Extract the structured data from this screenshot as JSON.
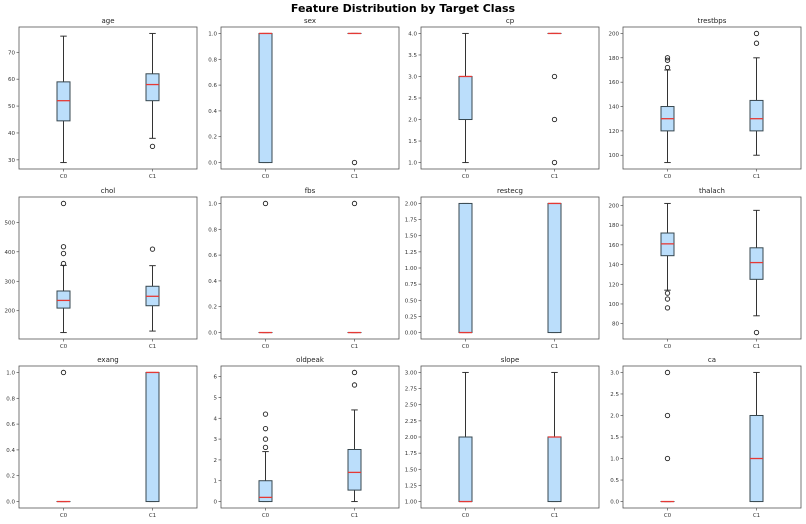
{
  "chart_data": {
    "title": "Feature Distribution by Target Class",
    "type": "boxplot",
    "categories": [
      "C0",
      "C1"
    ],
    "colors": {
      "box_fill": "#bbdefb",
      "box_edge": "#37474f",
      "median": "#e53935",
      "whisker": "#333333"
    },
    "grid": false,
    "panels": [
      {
        "title": "age",
        "ylim": [
          26.6,
          79.4
        ],
        "yticks": [
          "30",
          "40",
          "50",
          "60",
          "70"
        ],
        "boxes": [
          {
            "whislo": 29,
            "q1": 44.5,
            "med": 52,
            "q3": 59,
            "whishi": 76,
            "fliers": []
          },
          {
            "whislo": 38,
            "q1": 52,
            "med": 58,
            "q3": 62,
            "whishi": 77,
            "fliers": [
              35
            ]
          }
        ]
      },
      {
        "title": "sex",
        "ylim": [
          -0.05,
          1.05
        ],
        "yticks": [
          "0.0",
          "0.2",
          "0.4",
          "0.6",
          "0.8",
          "1.0"
        ],
        "boxes": [
          {
            "whislo": 0,
            "q1": 0,
            "med": 1,
            "q3": 1,
            "whishi": 1,
            "fliers": []
          },
          {
            "whislo": 1,
            "q1": 1,
            "med": 1,
            "q3": 1,
            "whishi": 1,
            "fliers": [
              0
            ]
          }
        ]
      },
      {
        "title": "cp",
        "ylim": [
          0.85,
          4.15
        ],
        "yticks": [
          "1.0",
          "1.5",
          "2.0",
          "2.5",
          "3.0",
          "3.5",
          "4.0"
        ],
        "boxes": [
          {
            "whislo": 1,
            "q1": 2,
            "med": 3,
            "q3": 3,
            "whishi": 4,
            "fliers": []
          },
          {
            "whislo": 4,
            "q1": 4,
            "med": 4,
            "q3": 4,
            "whishi": 4,
            "fliers": [
              1,
              2,
              3
            ]
          }
        ]
      },
      {
        "title": "trestbps",
        "ylim": [
          88.7,
          205.3
        ],
        "yticks": [
          "100",
          "120",
          "140",
          "160",
          "180",
          "200"
        ],
        "boxes": [
          {
            "whislo": 94,
            "q1": 120,
            "med": 130,
            "q3": 140,
            "whishi": 170,
            "fliers": [
              172,
              178,
              180
            ]
          },
          {
            "whislo": 100,
            "q1": 120,
            "med": 130,
            "q3": 145,
            "whishi": 180,
            "fliers": [
              192,
              200
            ]
          }
        ]
      },
      {
        "title": "chol",
        "ylim": [
          104.1,
          585.9
        ],
        "yticks": [
          "200",
          "300",
          "400",
          "500"
        ],
        "boxes": [
          {
            "whislo": 126,
            "q1": 209,
            "med": 235,
            "q3": 267,
            "whishi": 354,
            "fliers": [
              360,
              394,
              417,
              564
            ]
          },
          {
            "whislo": 131,
            "q1": 217,
            "med": 249,
            "q3": 283,
            "whishi": 353,
            "fliers": [
              409
            ]
          }
        ]
      },
      {
        "title": "fbs",
        "ylim": [
          -0.05,
          1.05
        ],
        "yticks": [
          "0.0",
          "0.2",
          "0.4",
          "0.6",
          "0.8",
          "1.0"
        ],
        "boxes": [
          {
            "whislo": 0,
            "q1": 0,
            "med": 0,
            "q3": 0,
            "whishi": 0,
            "fliers": [
              1
            ]
          },
          {
            "whislo": 0,
            "q1": 0,
            "med": 0,
            "q3": 0,
            "whishi": 0,
            "fliers": [
              1
            ]
          }
        ]
      },
      {
        "title": "restecg",
        "ylim": [
          -0.1,
          2.1
        ],
        "yticks": [
          "0.00",
          "0.25",
          "0.50",
          "0.75",
          "1.00",
          "1.25",
          "1.50",
          "1.75",
          "2.00"
        ],
        "boxes": [
          {
            "whislo": 0,
            "q1": 0,
            "med": 0,
            "q3": 2,
            "whishi": 2,
            "fliers": []
          },
          {
            "whislo": 0,
            "q1": 0,
            "med": 2,
            "q3": 2,
            "whishi": 2,
            "fliers": []
          }
        ]
      },
      {
        "title": "thalach",
        "ylim": [
          64.45,
          208.55
        ],
        "yticks": [
          "80",
          "100",
          "120",
          "140",
          "160",
          "180",
          "200"
        ],
        "boxes": [
          {
            "whislo": 114,
            "q1": 149,
            "med": 161,
            "q3": 172,
            "whishi": 202,
            "fliers": [
              111,
              105,
              96
            ]
          },
          {
            "whislo": 88,
            "q1": 125,
            "med": 142,
            "q3": 157,
            "whishi": 195,
            "fliers": [
              71
            ]
          }
        ]
      },
      {
        "title": "exang",
        "ylim": [
          -0.05,
          1.05
        ],
        "yticks": [
          "0.0",
          "0.2",
          "0.4",
          "0.6",
          "0.8",
          "1.0"
        ],
        "boxes": [
          {
            "whislo": 0,
            "q1": 0,
            "med": 0,
            "q3": 0,
            "whishi": 0,
            "fliers": [
              1
            ]
          },
          {
            "whislo": 0,
            "q1": 0,
            "med": 1,
            "q3": 1,
            "whishi": 1,
            "fliers": []
          }
        ]
      },
      {
        "title": "oldpeak",
        "ylim": [
          -0.31,
          6.51
        ],
        "yticks": [
          "0",
          "1",
          "2",
          "3",
          "4",
          "5",
          "6"
        ],
        "boxes": [
          {
            "whislo": 0,
            "q1": 0,
            "med": 0.2,
            "q3": 1.0,
            "whishi": 2.4,
            "fliers": [
              2.6,
              3.0,
              3.5,
              4.2
            ]
          },
          {
            "whislo": 0,
            "q1": 0.55,
            "med": 1.4,
            "q3": 2.5,
            "whishi": 4.4,
            "fliers": [
              5.6,
              6.2
            ]
          }
        ]
      },
      {
        "title": "slope",
        "ylim": [
          0.9,
          3.1
        ],
        "yticks": [
          "1.00",
          "1.25",
          "1.50",
          "1.75",
          "2.00",
          "2.25",
          "2.50",
          "2.75",
          "3.00"
        ],
        "boxes": [
          {
            "whislo": 1,
            "q1": 1,
            "med": 1,
            "q3": 2,
            "whishi": 3,
            "fliers": []
          },
          {
            "whislo": 1,
            "q1": 1,
            "med": 2,
            "q3": 2,
            "whishi": 3,
            "fliers": []
          }
        ]
      },
      {
        "title": "ca",
        "ylim": [
          -0.15,
          3.15
        ],
        "yticks": [
          "0.0",
          "0.5",
          "1.0",
          "1.5",
          "2.0",
          "2.5",
          "3.0"
        ],
        "boxes": [
          {
            "whislo": 0,
            "q1": 0,
            "med": 0,
            "q3": 0,
            "whishi": 0,
            "fliers": [
              1,
              2,
              3
            ]
          },
          {
            "whislo": 0,
            "q1": 0,
            "med": 1,
            "q3": 2,
            "whishi": 3,
            "fliers": []
          }
        ]
      }
    ]
  }
}
